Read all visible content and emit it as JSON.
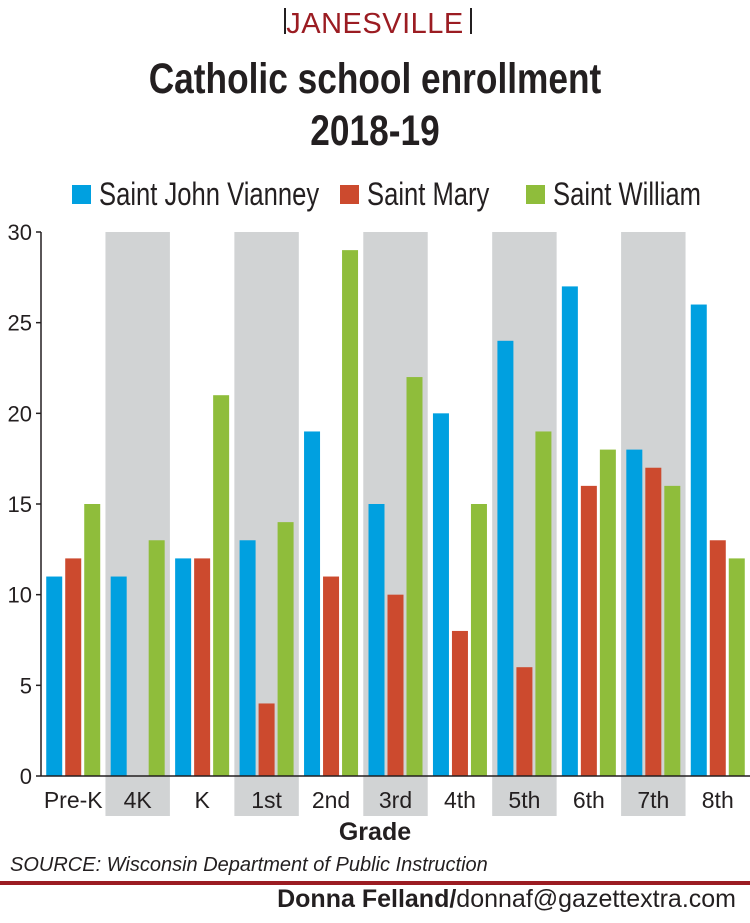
{
  "header": {
    "kicker": "JANESVILLE",
    "title_line1": "Catholic school enrollment",
    "title_line2": "2018-19"
  },
  "colors": {
    "saint_john_vianney": "#00a0e0",
    "saint_mary": "#cc4a2e",
    "saint_william": "#8fbd3b",
    "band": "#d1d3d4",
    "accent": "#9b1c22"
  },
  "chart_data": {
    "type": "bar",
    "categories": [
      "Pre-K",
      "4K",
      "K",
      "1st",
      "2nd",
      "3rd",
      "4th",
      "5th",
      "6th",
      "7th",
      "8th"
    ],
    "series": [
      {
        "name": "Saint John Vianney",
        "values": [
          11,
          11,
          12,
          13,
          19,
          15,
          20,
          24,
          27,
          18,
          26
        ]
      },
      {
        "name": "Saint Mary",
        "values": [
          12,
          0,
          12,
          4,
          11,
          10,
          8,
          6,
          16,
          17,
          13
        ]
      },
      {
        "name": "Saint William",
        "values": [
          15,
          13,
          21,
          14,
          29,
          22,
          15,
          19,
          18,
          16,
          12
        ]
      }
    ],
    "xlabel": "Grade",
    "ylabel": "",
    "ylim": [
      0,
      30
    ],
    "yticks": [
      0,
      5,
      10,
      15,
      20,
      25,
      30
    ],
    "legend": "top",
    "alternating_bands": true
  },
  "footer": {
    "source": "SOURCE: Wisconsin Department of Public Instruction",
    "credit_name": "Donna Felland/",
    "credit_email": "donnaf@gazettextra.com"
  }
}
